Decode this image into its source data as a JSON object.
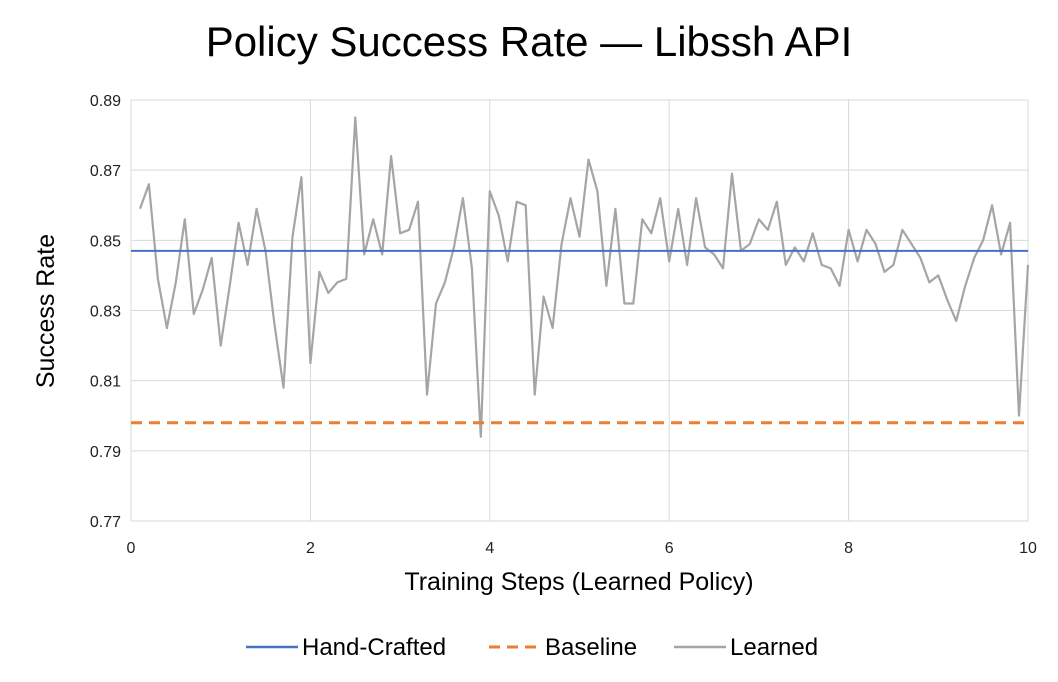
{
  "chart_data": {
    "type": "line",
    "title": "Policy Success Rate — Libssh API",
    "xlabel": "Training Steps (Learned Policy)",
    "ylabel": "Success Rate",
    "xlim": [
      0,
      10
    ],
    "ylim": [
      0.77,
      0.89
    ],
    "x_ticks": [
      0,
      2,
      4,
      6,
      8,
      10
    ],
    "y_ticks": [
      0.77,
      0.79,
      0.81,
      0.83,
      0.85,
      0.87,
      0.89
    ],
    "grid": true,
    "legend_position": "bottom",
    "series": [
      {
        "name": "Hand-Crafted",
        "style": "solid",
        "color": "#4472C4",
        "values": [
          0.847,
          0.847
        ]
      },
      {
        "name": "Baseline",
        "style": "dashed",
        "color": "#ED7D31",
        "values": [
          0.798,
          0.798
        ]
      },
      {
        "name": "Learned",
        "style": "solid",
        "color": "#A5A5A5",
        "x": [
          0.1,
          0.2,
          0.3,
          0.4,
          0.5,
          0.6,
          0.7,
          0.8,
          0.9,
          1.0,
          1.1,
          1.2,
          1.3,
          1.4,
          1.5,
          1.6,
          1.7,
          1.8,
          1.9,
          2.0,
          2.1,
          2.2,
          2.3,
          2.4,
          2.5,
          2.6,
          2.7,
          2.8,
          2.9,
          3.0,
          3.1,
          3.2,
          3.3,
          3.4,
          3.5,
          3.6,
          3.7,
          3.8,
          3.9,
          4.0,
          4.1,
          4.2,
          4.3,
          4.4,
          4.5,
          4.6,
          4.7,
          4.8,
          4.9,
          5.0,
          5.1,
          5.2,
          5.3,
          5.4,
          5.5,
          5.6,
          5.7,
          5.8,
          5.9,
          6.0,
          6.1,
          6.2,
          6.3,
          6.4,
          6.5,
          6.6,
          6.7,
          6.8,
          6.9,
          7.0,
          7.1,
          7.2,
          7.3,
          7.4,
          7.5,
          7.6,
          7.7,
          7.8,
          7.9,
          8.0,
          8.1,
          8.2,
          8.3,
          8.4,
          8.5,
          8.6,
          8.7,
          8.8,
          8.9,
          9.0,
          9.1,
          9.2,
          9.3,
          9.4,
          9.5,
          9.6,
          9.7,
          9.8,
          9.9,
          10.0
        ],
        "values": [
          0.859,
          0.866,
          0.839,
          0.825,
          0.838,
          0.856,
          0.829,
          0.836,
          0.845,
          0.82,
          0.837,
          0.855,
          0.843,
          0.859,
          0.847,
          0.826,
          0.808,
          0.851,
          0.868,
          0.815,
          0.841,
          0.835,
          0.838,
          0.839,
          0.885,
          0.846,
          0.856,
          0.846,
          0.874,
          0.852,
          0.853,
          0.861,
          0.806,
          0.832,
          0.838,
          0.848,
          0.862,
          0.842,
          0.794,
          0.864,
          0.857,
          0.844,
          0.861,
          0.86,
          0.806,
          0.834,
          0.825,
          0.849,
          0.862,
          0.851,
          0.873,
          0.864,
          0.837,
          0.859,
          0.832,
          0.832,
          0.856,
          0.852,
          0.862,
          0.844,
          0.859,
          0.843,
          0.862,
          0.848,
          0.846,
          0.842,
          0.869,
          0.847,
          0.849,
          0.856,
          0.853,
          0.861,
          0.843,
          0.848,
          0.844,
          0.852,
          0.843,
          0.842,
          0.837,
          0.853,
          0.844,
          0.853,
          0.849,
          0.841,
          0.843,
          0.853,
          0.849,
          0.845,
          0.838,
          0.84,
          0.833,
          0.827,
          0.837,
          0.845,
          0.85,
          0.86,
          0.846,
          0.855,
          0.8,
          0.843
        ]
      }
    ]
  }
}
